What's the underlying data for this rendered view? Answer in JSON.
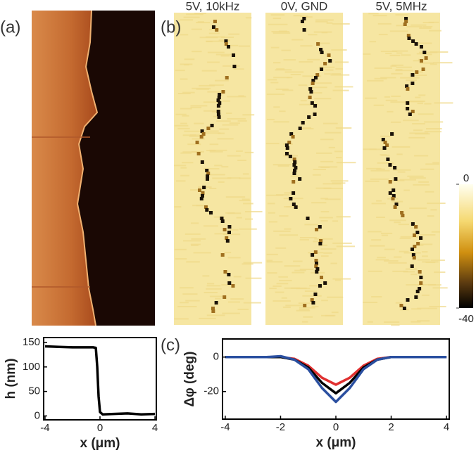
{
  "panel_labels": [
    "(a)",
    "(b)",
    "(c)"
  ],
  "images": [
    {
      "title": "5V, 10kHz"
    },
    {
      "title": "0V, GND"
    },
    {
      "title": "5V, 5MHz"
    }
  ],
  "colorbar": {
    "lim": [
      -40,
      0
    ],
    "ticks": [
      0,
      -40
    ]
  },
  "chart_data": [
    {
      "type": "line",
      "xlabel": "x (μm)",
      "ylabel": "h (nm)",
      "x": [
        -4,
        -3,
        -2,
        -1,
        -0.5,
        -0.3,
        -0.2,
        -0.1,
        0,
        0.2,
        1,
        2,
        3,
        4
      ],
      "series": [
        {
          "color": "#000000",
          "values": [
            142,
            141,
            140,
            140,
            140,
            139,
            100,
            40,
            8,
            3,
            4,
            5,
            3,
            4
          ]
        }
      ],
      "xlim": [
        -4.1,
        4.1
      ],
      "ylim": [
        -8,
        160
      ],
      "xticks": [
        -4,
        0,
        4
      ],
      "yticks": [
        0,
        50,
        100,
        150
      ]
    },
    {
      "type": "line",
      "xlabel": "x (μm)",
      "ylabel": "Δφ (deg)",
      "x": [
        -4,
        -3.5,
        -3,
        -2.5,
        -2,
        -1.5,
        -1,
        -0.5,
        0,
        0.5,
        1,
        1.5,
        2,
        2.5,
        3,
        3.5,
        4
      ],
      "series": [
        {
          "color": "#e03030",
          "values": [
            0,
            0,
            0,
            0,
            0,
            -1,
            -5,
            -12,
            -16,
            -12,
            -5,
            -1,
            0,
            0,
            0,
            0,
            0
          ]
        },
        {
          "color": "#000000",
          "values": [
            0,
            0,
            0,
            0,
            0,
            -1.5,
            -6,
            -15,
            -21,
            -15,
            -6,
            -1.5,
            0,
            0,
            0,
            0,
            0
          ]
        },
        {
          "color": "#2a4fa0",
          "values": [
            0,
            0,
            0,
            0,
            0.5,
            -1.5,
            -7,
            -18,
            -26,
            -18,
            -7,
            -1.5,
            0,
            0,
            0,
            0,
            0
          ]
        }
      ],
      "xlim": [
        -4.1,
        4.1
      ],
      "ylim": [
        -36,
        10.5
      ],
      "xticks": [
        -4,
        -2,
        0,
        2,
        4
      ],
      "yticks": [
        -20,
        0
      ]
    }
  ]
}
